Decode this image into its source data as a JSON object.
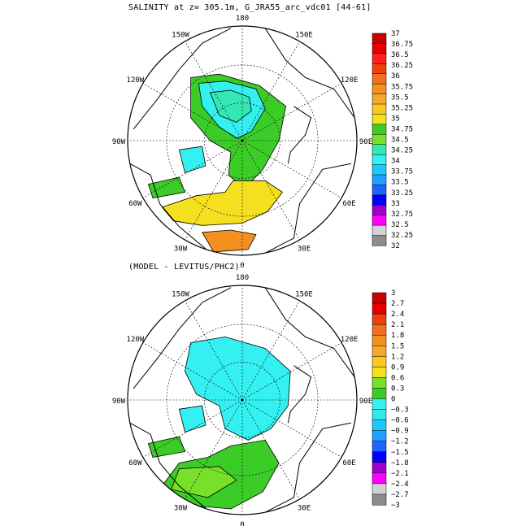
{
  "panels": [
    {
      "title": "SALINITY at z= 305.1m, G_JRA55_arc_vdc01 [44-61]",
      "lon_labels": [
        "180",
        "150E",
        "120E",
        "90E",
        "60E",
        "30E",
        "0",
        "30W",
        "60W",
        "90W",
        "120W",
        "150W"
      ],
      "colorbar": {
        "labels": [
          "37",
          "36.75",
          "36.5",
          "36.25",
          "36",
          "35.75",
          "35.5",
          "35.25",
          "35",
          "34.75",
          "34.5",
          "34.25",
          "34",
          "33.75",
          "33.5",
          "33.25",
          "33",
          "32.75",
          "32.5",
          "32.25",
          "32"
        ],
        "colors": [
          "#c80000",
          "#e60000",
          "#ff2020",
          "#f04010",
          "#f07020",
          "#f59020",
          "#f5a830",
          "#fac820",
          "#f5e020",
          "#3ccc28",
          "#78e028",
          "#34e8b4",
          "#34f0f0",
          "#1ec8ff",
          "#1ea0ff",
          "#1e64ff",
          "#0000ff",
          "#a000c8",
          "#ff00ff",
          "#d2d2d2",
          "#8c8c8c"
        ]
      }
    },
    {
      "title": "(MODEL - LEVITUS/PHC2)",
      "lon_labels": [
        "180",
        "150E",
        "120E",
        "90E",
        "60E",
        "30E",
        "0",
        "30W",
        "60W",
        "90W",
        "120W",
        "150W"
      ],
      "colorbar": {
        "labels": [
          "3",
          "2.7",
          "2.4",
          "2.1",
          "1.8",
          "1.5",
          "1.2",
          "0.9",
          "0.6",
          "0.3",
          "0",
          "−0.3",
          "−0.6",
          "−0.9",
          "−1.2",
          "−1.5",
          "−1.8",
          "−2.1",
          "−2.4",
          "−2.7",
          "−3"
        ],
        "colors": [
          "#c80000",
          "#e60000",
          "#f04010",
          "#f07020",
          "#f59020",
          "#f5a830",
          "#fac820",
          "#f5e020",
          "#78e028",
          "#3ccc28",
          "#34f0f0",
          "#34e8e8",
          "#1ec8ff",
          "#1ea0ff",
          "#1e64ff",
          "#0000ff",
          "#a000c8",
          "#ff00ff",
          "#d2d2d2",
          "#8c8c8c"
        ]
      }
    }
  ]
}
